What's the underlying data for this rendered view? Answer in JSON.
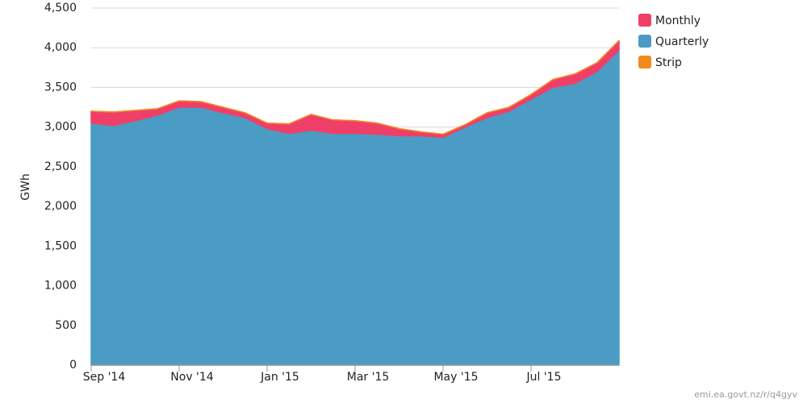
{
  "chart_data": {
    "type": "stacked-area",
    "y_label": "GWh",
    "source": "emi.ea.govt.nz/r/q4gyv",
    "categories": [
      "Sep '14",
      null,
      null,
      null,
      "Nov '14",
      null,
      null,
      null,
      "Jan '15",
      null,
      null,
      null,
      "Mar '15",
      null,
      null,
      null,
      "May '15",
      null,
      null,
      null,
      "Jul '15",
      null,
      null,
      null,
      null
    ],
    "series": [
      {
        "name": "Monthly",
        "color": "#ef3f68",
        "values": [
          150,
          170,
          130,
          80,
          80,
          70,
          70,
          60,
          70,
          120,
          200,
          170,
          160,
          140,
          90,
          50,
          40,
          30,
          60,
          50,
          60,
          100,
          120,
          110,
          120
        ]
      },
      {
        "name": "Quarterly",
        "color": "#4a9cc4",
        "values": [
          3050,
          3020,
          3080,
          3150,
          3250,
          3250,
          3180,
          3120,
          2980,
          2920,
          2960,
          2920,
          2920,
          2910,
          2890,
          2890,
          2870,
          3000,
          3120,
          3200,
          3350,
          3500,
          3550,
          3700,
          3970
        ]
      },
      {
        "name": "Strip",
        "color": "#f28a1c",
        "values": [
          0,
          0,
          0,
          0,
          0,
          0,
          0,
          0,
          0,
          0,
          0,
          0,
          0,
          0,
          0,
          0,
          0,
          0,
          0,
          0,
          0,
          0,
          0,
          0,
          0
        ]
      }
    ],
    "stack_order": [
      "Quarterly",
      "Monthly",
      "Strip"
    ],
    "ylim": [
      0,
      4500
    ],
    "yticks": [
      0,
      500,
      {
        "value": 1000,
        "label": "1,000"
      },
      {
        "value": 1500,
        "label": "1,500"
      },
      {
        "value": 2000,
        "label": "2,000"
      },
      {
        "value": 2500,
        "label": "2,500"
      },
      {
        "value": 3000,
        "label": "3,000"
      },
      {
        "value": 3500,
        "label": "3,500"
      },
      {
        "value": 4000,
        "label": "4,000"
      },
      {
        "value": 4500,
        "label": "4,500"
      }
    ],
    "grid": true
  }
}
